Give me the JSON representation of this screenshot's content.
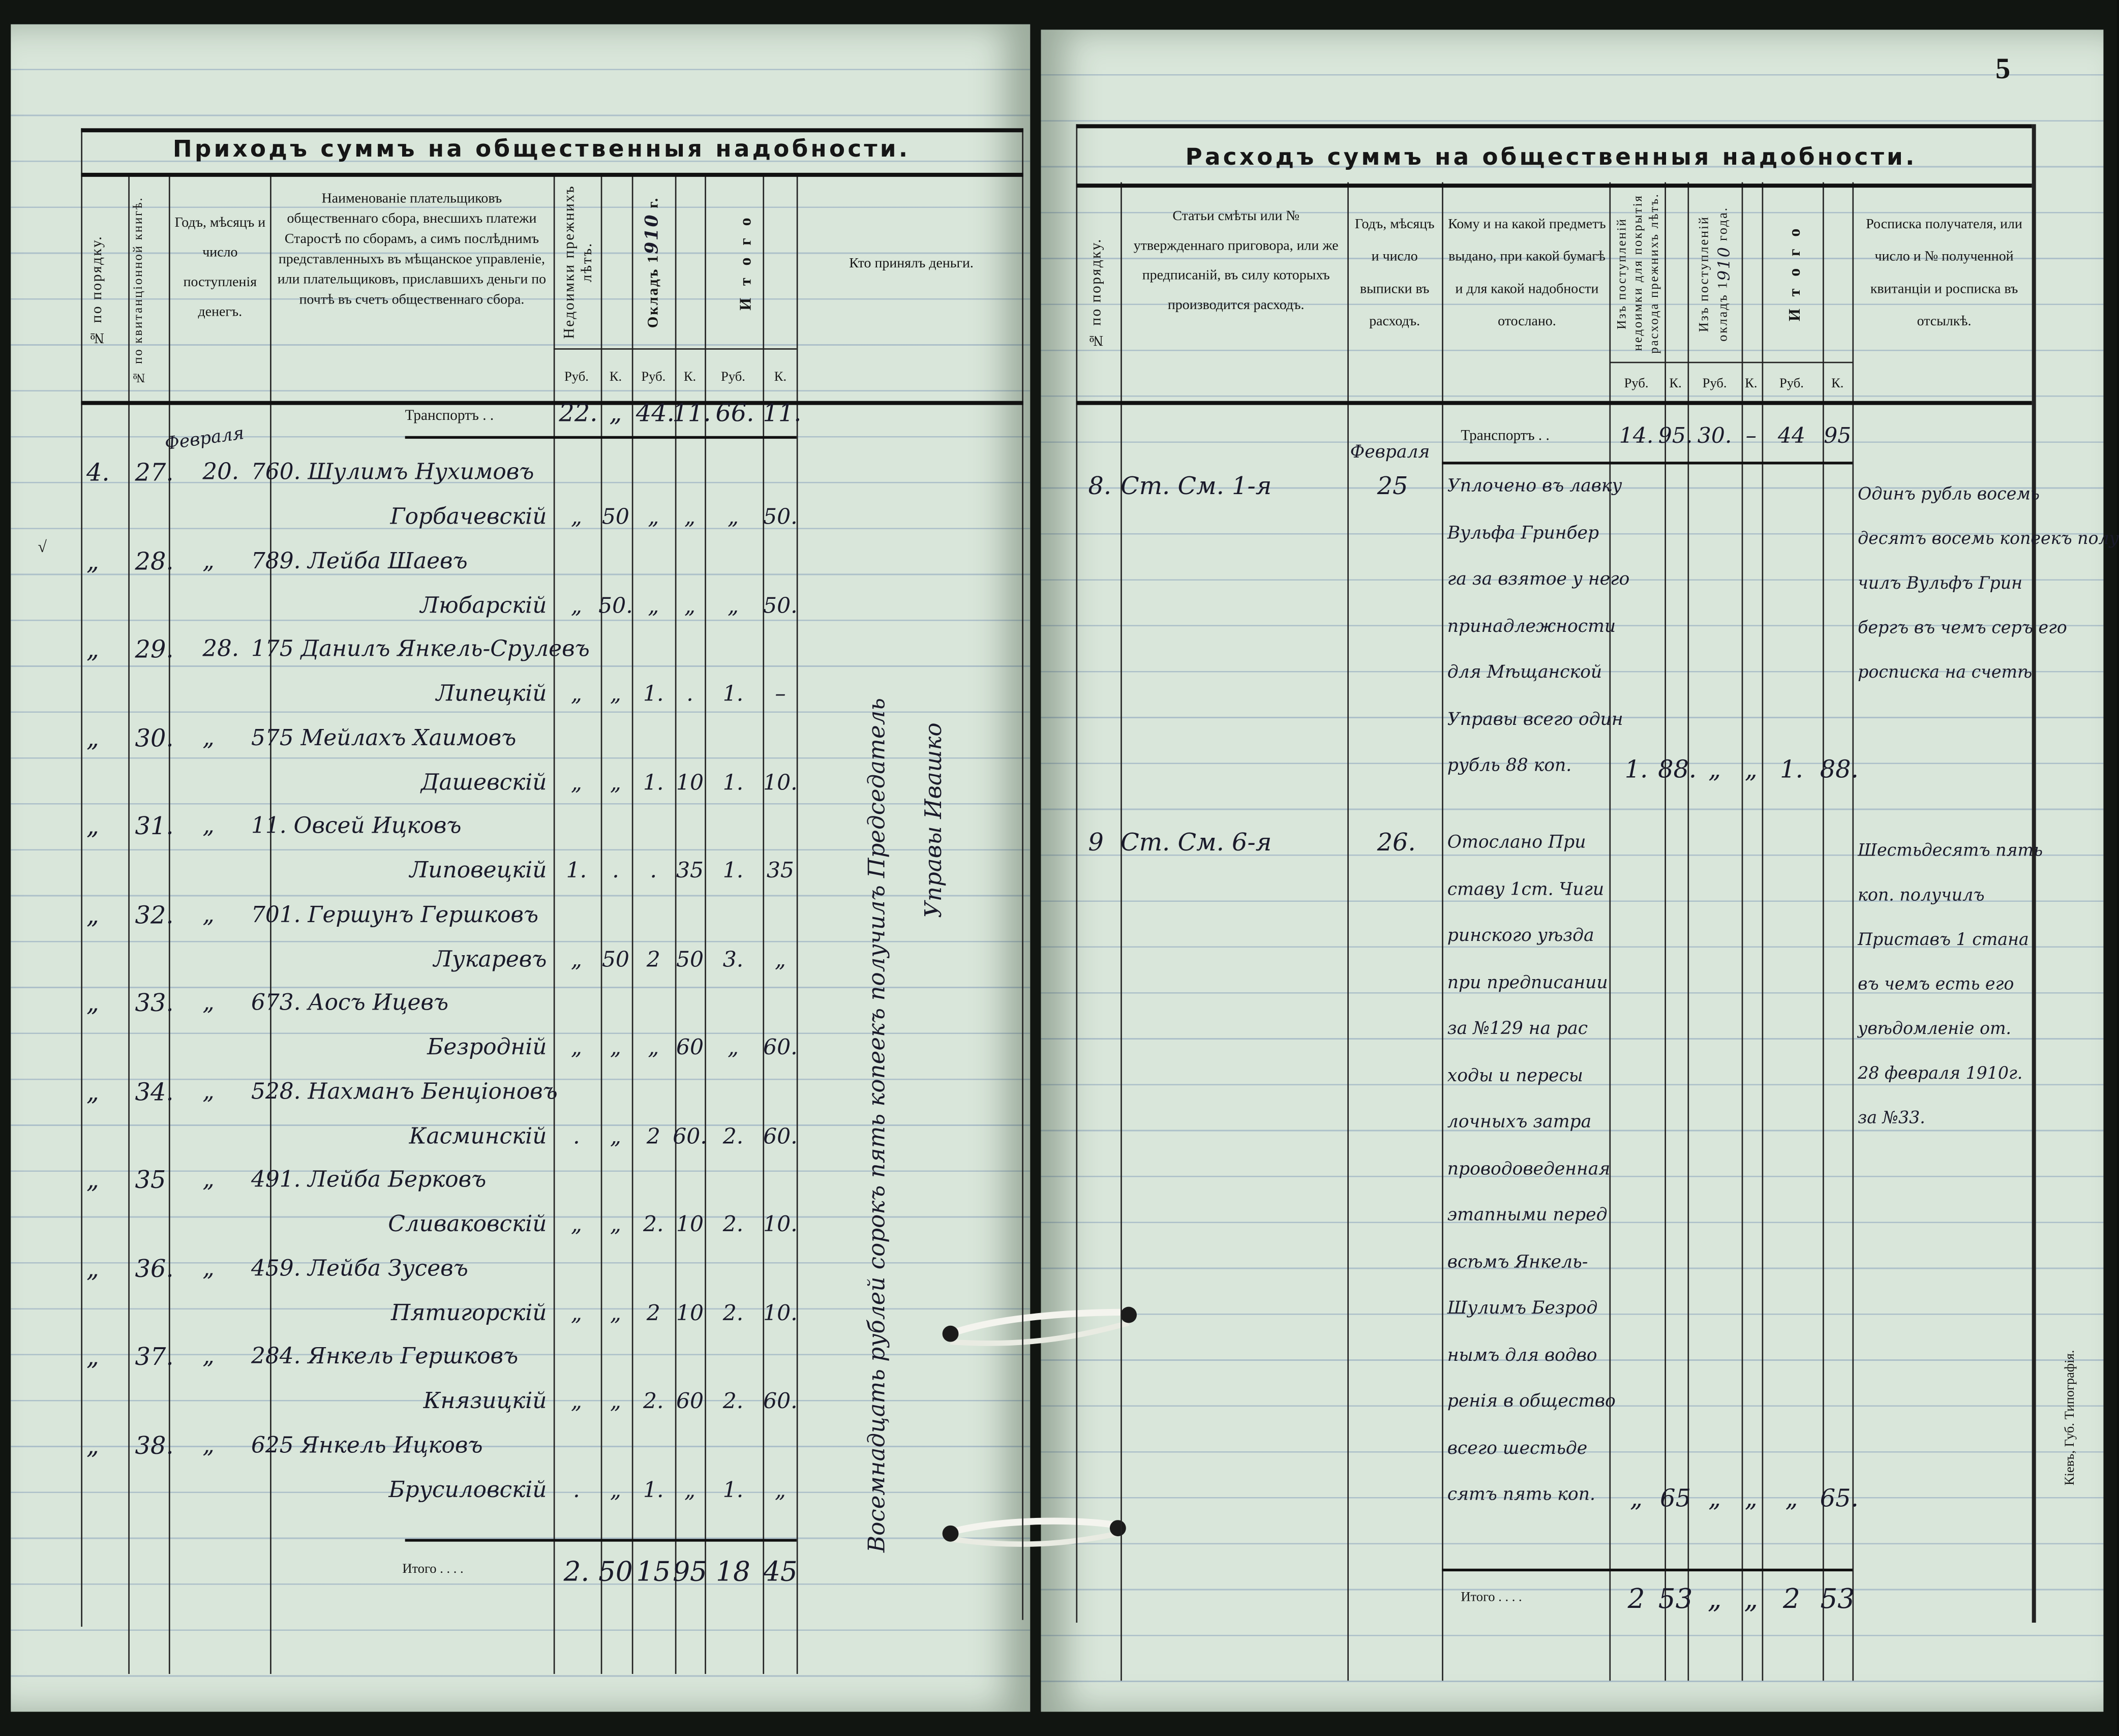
{
  "page_number": "5",
  "printer_note": "Кіевъ, Губ. Типографія.",
  "check_mark": "√",
  "left": {
    "title": "Приходъ суммъ на общественныя надобности.",
    "headers": {
      "no_order": "№ по порядку.",
      "no_receipt": "№ по квитанціонной книгѣ.",
      "date": "Годъ, мѣсяцъ и число поступленія денегъ.",
      "payer": "Наименованіе плательщиковъ общественнаго сбора, внесшихъ платежи Старостѣ по сборамъ, а симъ послѣднимъ представленныхъ въ мѣщанское управленіе, или плательщиковъ, приславшихъ деньги по почтѣ въ счетъ общественнаго сбора.",
      "arrears": "Недоимки прежнихъ лѣтъ.",
      "salary_prefix": "Окладъ 1",
      "salary_year": "910",
      "salary_suffix": "г.",
      "total": "И т о г о",
      "received_by": "Кто принялъ деньги.",
      "rub": "Руб.",
      "kop": "К."
    },
    "transport_label": "Транспортъ . .",
    "transport": [
      "22.",
      "„",
      "44.",
      "11.",
      "66.",
      "11."
    ],
    "month": "Февраля",
    "rows": [
      {
        "no": "4.",
        "receipt": "27.",
        "date": "20.",
        "name": "760. Шулимъ Нухимовъ",
        "surname": "Горбачевскій",
        "amounts": [
          "„",
          "50",
          "„",
          "„",
          "„",
          "50."
        ]
      },
      {
        "no": "„",
        "receipt": "28.",
        "date": "„",
        "name": "789. Лейба Шаевъ",
        "surname": "Любарскій",
        "amounts": [
          "„",
          "50.",
          "„",
          "„",
          "„",
          "50."
        ]
      },
      {
        "no": "„",
        "receipt": "29.",
        "date": "28.",
        "name": "175 Данилъ Янкель-Срулевъ",
        "surname": "Липецкій",
        "amounts": [
          "„",
          "„",
          "1.",
          ".",
          "1.",
          "–"
        ]
      },
      {
        "no": "„",
        "receipt": "30.",
        "date": "„",
        "name": "575 Мейлахъ Хаимовъ",
        "surname": "Дашевскій",
        "amounts": [
          "„",
          "„",
          "1.",
          "10",
          "1.",
          "10."
        ]
      },
      {
        "no": "„",
        "receipt": "31.",
        "date": "„",
        "name": "11. Овсей Ицковъ",
        "surname": "Липовецкій",
        "amounts": [
          "1.",
          ".",
          ".",
          "35",
          "1.",
          "35"
        ]
      },
      {
        "no": "„",
        "receipt": "32.",
        "date": "„",
        "name": "701. Гершунъ Гершковъ",
        "surname": "Лукаревъ",
        "amounts": [
          "„",
          "50",
          "2",
          "50",
          "3.",
          "„"
        ]
      },
      {
        "no": "„",
        "receipt": "33.",
        "date": "„",
        "name": "673. Аосъ Ицевъ",
        "surname": "Безродній",
        "amounts": [
          "„",
          "„",
          "„",
          "60",
          "„",
          "60."
        ]
      },
      {
        "no": "„",
        "receipt": "34.",
        "date": "„",
        "name": "528. Нахманъ Бенціоновъ",
        "surname": "Касминскій",
        ".amounts": [],
        "amounts": [
          ".",
          "„",
          "2",
          "60.",
          "2.",
          "60."
        ]
      },
      {
        "no": "„",
        "receipt": "35",
        "date": "„",
        "name": "491. Лейба Берковъ",
        "surname": "Сливаковскій",
        "amounts": [
          "„",
          "„",
          "2.",
          "10",
          "2.",
          "10."
        ]
      },
      {
        "no": "„",
        "receipt": "36.",
        "date": "„",
        "name": "459. Лейба Зусевъ",
        "surname": "Пятигорскій",
        "amounts": [
          "„",
          "„",
          "2",
          "10",
          "2.",
          "10."
        ]
      },
      {
        "no": "„",
        "receipt": "37.",
        "date": "„",
        "name": "284. Янкель Гершковъ",
        "surname": "Князицкій",
        "amounts": [
          "„",
          "„",
          "2.",
          "60",
          "2.",
          "60."
        ]
      },
      {
        "no": "„",
        "receipt": "38.",
        "date": "„",
        "name": "625 Янкель Ицковъ",
        "surname": "Брусиловскій",
        "amounts": [
          ".",
          "„",
          "1.",
          "„",
          "1.",
          "„"
        ]
      }
    ],
    "total_label": "Итого . . . .",
    "totals": [
      "2.",
      "50",
      "15",
      "95",
      "18",
      "45"
    ],
    "receiver_note": [
      "Восемнадцать рублей сорокъ пять копеекъ получилъ Председатель",
      "Управы Ивашко"
    ]
  },
  "right": {
    "title": "Расходъ суммъ на общественныя надобности.",
    "headers": {
      "no_order": "№ по порядку.",
      "article": "Статьи смѣты или № утвержденнаго приговора, или же предписаній, въ силу которыхъ производится расходъ.",
      "date": "Годъ, мѣсяцъ и число выписки въ расходъ.",
      "to_whom": "Кому и на какой предметъ выдано, при какой бумагѣ и для какой надобности отослано.",
      "from_arrears": "Изъ поступленій недоимки для покрытія расхода прежнихъ лѣтъ.",
      "from_salary_prefix": "Изъ поступленій окладъ 1",
      "from_salary_year": "910",
      "from_salary_suffix": "года.",
      "total": "И т о г о",
      "receipt": "Росписка получателя, или число и № полученной квитанціи и росписка въ отсылкѣ.",
      "rub": "Руб.",
      "kop": "К."
    },
    "transport_label": "Транспортъ . .",
    "transport": [
      "14.",
      "95.",
      "30.",
      "–",
      "44",
      "95"
    ],
    "entries": [
      {
        "no": "8.",
        "article": "Ст. См. 1-я",
        "date_month": "Февраля",
        "date": "25",
        "text": [
          "Уплочено въ лавку",
          "Вульфа Гринбер",
          "га за взятое у него",
          "принадлежности",
          "для Мѣщанской",
          "Управы всего один",
          "рубль 88 коп."
        ],
        "amounts": [
          "1.",
          "88.",
          "„",
          "„",
          "1.",
          "88."
        ],
        "receipt": [
          "Одинъ рубль восемь",
          "десятъ восемь копеекъ полу",
          "чилъ Вульфъ Грин",
          "бергъ въ чемъ серъ его",
          "росписка на счетѣ"
        ]
      },
      {
        "no": "9",
        "article": "Ст. См. 6-я",
        "date_month": "",
        "date": "26.",
        "text": [
          "Отослано При",
          "ставу 1ст. Чиги",
          "ринского уѣзда",
          "при предписании",
          "за №129 на рас",
          "ходы и пересы",
          "лочныхъ затра",
          "проводоведенная",
          "этапными перед",
          "всѣмъ Янкель-",
          "Шулимъ Безрод",
          "нымъ для водво",
          "ренія в общество",
          "всего шестьде",
          "сятъ пять коп."
        ],
        "amounts": [
          "„",
          "65",
          "„",
          "„",
          "„",
          "65."
        ],
        "receipt": [
          "Шестьдесятъ пять",
          "коп. получилъ",
          "Приставъ 1 стана",
          "въ чемъ есть его",
          "увѣдомленіе от.",
          "28 февраля 1910г.",
          "за №33."
        ]
      }
    ],
    "total_label": "Итого . . . .",
    "totals": [
      "2",
      "53",
      "„",
      "„",
      "2",
      "53"
    ]
  }
}
